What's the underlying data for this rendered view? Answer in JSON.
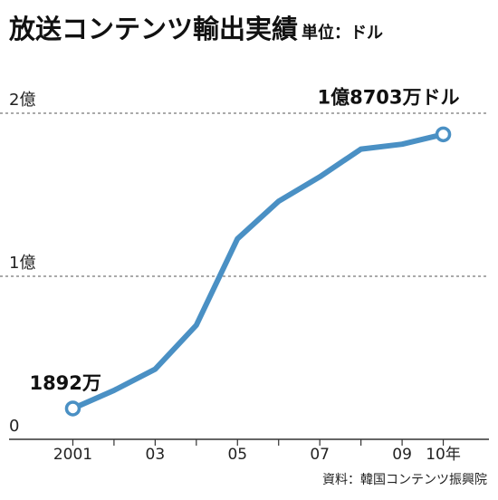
{
  "chart_data": {
    "type": "line",
    "title": "放送コンテンツ輸出実績",
    "unit_label": "単位：ドル",
    "x": [
      2001,
      2002,
      2003,
      2004,
      2005,
      2006,
      2007,
      2008,
      2009,
      2010
    ],
    "x_tick_labels": [
      {
        "x": 2001,
        "label": "2001"
      },
      {
        "x": 2003,
        "label": "03"
      },
      {
        "x": 2005,
        "label": "05"
      },
      {
        "x": 2007,
        "label": "07"
      },
      {
        "x": 2009,
        "label": "09"
      },
      {
        "x": 2010,
        "label": "10年"
      }
    ],
    "y_ticks": [
      {
        "value": 0,
        "label": "0"
      },
      {
        "value": 100000000,
        "label": "1億"
      },
      {
        "value": 200000000,
        "label": "2億"
      }
    ],
    "ylim": [
      0,
      200000000
    ],
    "xlim": [
      2000,
      2011
    ],
    "series": [
      {
        "color": "#4a90c4",
        "values": [
          18920000,
          30000000,
          43000000,
          70000000,
          123000000,
          146000000,
          161000000,
          178000000,
          181000000,
          187030000
        ]
      }
    ],
    "annotations": [
      {
        "x": 2001,
        "label": "1892万"
      },
      {
        "x": 2010,
        "label": "1億8703万ドル"
      }
    ],
    "gridlines": "dashed",
    "source": "資料：韓国コンテンツ振興院"
  }
}
